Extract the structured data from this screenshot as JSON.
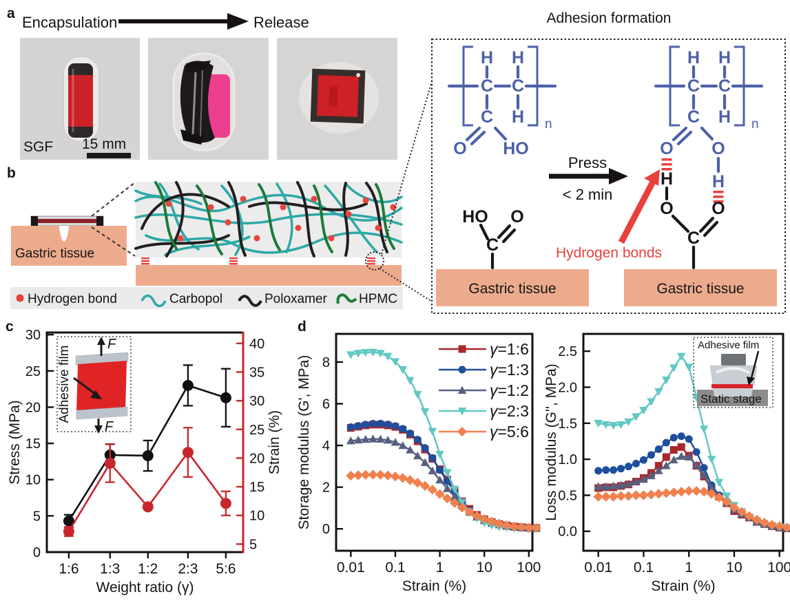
{
  "panel_a": {
    "label": "a",
    "encapsulation": "Encapsulation",
    "release": "Release",
    "sgf": "SGF",
    "scale_bar": "15 mm"
  },
  "adhesion": {
    "title": "Adhesion formation",
    "press": "Press",
    "time": "< 2 min",
    "hydrogen_bonds": "Hydrogen bonds",
    "gastric_tissue": "Gastric tissue",
    "atoms": {
      "h": "H",
      "c": "C",
      "o": "O",
      "ho": "HO",
      "n": "n"
    }
  },
  "panel_b": {
    "label": "b",
    "gastric_tissue": "Gastric tissue",
    "legend": {
      "hydrogen_bond": "Hydrogen bond",
      "carbopol": "Carbopol",
      "poloxamer": "Poloxamer",
      "hpmc": "HPMC"
    }
  },
  "panel_c": {
    "label": "c",
    "inset": {
      "film": "Adhesive film",
      "force": "F"
    }
  },
  "panel_d": {
    "label": "d",
    "inset": {
      "film": "Adhesive film",
      "stage": "Static stage"
    }
  },
  "colors": {
    "chem_blue": "#4d61a8",
    "hbond_red": "#e8413d",
    "tissue_salmon": "#edab8d",
    "carbopol_teal": "#2ca8a6",
    "poloxamer_black": "#221e1f",
    "hpmc_green": "#1b7b38",
    "series_1_6": "#a8282d",
    "series_1_3": "#1d4f9c",
    "series_1_2": "#566180",
    "series_2_3": "#62c8c3",
    "series_5_6": "#f0814f",
    "strain_axis_red": "#c8262c"
  },
  "chart_data": [
    {
      "id": "c",
      "type": "scatter",
      "categories": [
        "1:6",
        "1:3",
        "1:2",
        "2:3",
        "5:6"
      ],
      "cat_fractions": [
        0.112,
        0.322,
        0.515,
        0.719,
        0.912
      ],
      "xlabel": "Weight ratio (γ)",
      "left": {
        "label": "Stress (MPa)",
        "ticks": [
          0,
          5,
          10,
          15,
          20,
          25,
          30
        ],
        "range": [
          0,
          30.3
        ],
        "color": "#111111"
      },
      "right": {
        "label": "Strain (%)",
        "ticks": [
          5,
          10,
          15,
          20,
          25,
          30,
          35,
          40
        ],
        "range": [
          3.6,
          41.9
        ],
        "color": "#c8262c"
      },
      "series": [
        {
          "name": "Stress",
          "axis": "left",
          "color": "#111111",
          "marker": "circle",
          "values": [
            4.3,
            13.4,
            13.3,
            23.0,
            21.3
          ],
          "errors": [
            0.85,
            1.5,
            2.1,
            2.8,
            4.0
          ]
        },
        {
          "name": "Strain",
          "axis": "right",
          "color": "#c8262c",
          "marker": "circle",
          "values": [
            7.2,
            19.1,
            11.5,
            21.0,
            12.1
          ],
          "errors": [
            0.8,
            3.3,
            0.4,
            4.3,
            2.1
          ]
        }
      ]
    },
    {
      "id": "d1",
      "type": "line",
      "xscale": "log",
      "xlabel": "Strain (%)",
      "ylabel": "Storage modulus (G', MPa)",
      "xticks": [
        "0.01",
        "0.1",
        "1",
        "10",
        "100"
      ],
      "yticks": [
        "0",
        "2",
        "4",
        "6",
        "8"
      ],
      "xlog_range": [
        -2.33,
        2.08
      ],
      "yrange": [
        -1.05,
        9.35
      ],
      "legend": true,
      "x": [
        0.01,
        0.0147,
        0.0215,
        0.0316,
        0.0464,
        0.0681,
        0.1,
        0.147,
        0.215,
        0.316,
        0.464,
        0.681,
        1,
        1.47,
        2.15,
        3.16,
        4.64,
        6.81,
        10,
        14.7,
        21.5,
        31.6,
        46.4,
        68.1,
        100,
        147
      ],
      "series": [
        {
          "name": "γ=1:6",
          "color": "#a8282d",
          "marker": "square",
          "values": [
            4.84,
            4.9,
            4.96,
            5.0,
            5.0,
            4.96,
            4.89,
            4.75,
            4.52,
            4.2,
            3.8,
            3.36,
            2.86,
            2.36,
            1.88,
            1.32,
            0.96,
            0.67,
            0.46,
            0.33,
            0.23,
            0.16,
            0.11,
            0.08,
            0.05,
            0.04
          ]
        },
        {
          "name": "γ=1:3",
          "color": "#1d4f9c",
          "marker": "circle",
          "values": [
            4.88,
            4.94,
            5.0,
            5.04,
            5.05,
            5.01,
            4.93,
            4.8,
            4.58,
            4.28,
            3.88,
            3.4,
            2.82,
            2.28,
            1.76,
            1.22,
            0.88,
            0.61,
            0.41,
            0.28,
            0.19,
            0.13,
            0.08,
            0.05,
            0.03,
            0.02
          ]
        },
        {
          "name": "γ=1:2",
          "color": "#566180",
          "marker": "triangle-up",
          "values": [
            4.22,
            4.26,
            4.29,
            4.31,
            4.3,
            4.25,
            4.15,
            3.99,
            3.78,
            3.5,
            3.18,
            2.78,
            2.34,
            1.93,
            1.54,
            1.11,
            0.8,
            0.56,
            0.39,
            0.27,
            0.19,
            0.12,
            0.08,
            0.05,
            0.03,
            0.02
          ]
        },
        {
          "name": "γ=2:3",
          "color": "#62c8c3",
          "marker": "triangle-down",
          "values": [
            8.35,
            8.42,
            8.46,
            8.47,
            8.42,
            8.28,
            8.02,
            7.64,
            7.12,
            6.45,
            5.62,
            4.68,
            3.58,
            2.7,
            1.9,
            1.28,
            0.82,
            0.51,
            0.29,
            0.17,
            0.1,
            0.06,
            0.03,
            0.02,
            0.01,
            0.01
          ]
        },
        {
          "name": "γ=5:6",
          "color": "#f0814f",
          "marker": "diamond",
          "values": [
            2.55,
            2.57,
            2.59,
            2.6,
            2.59,
            2.56,
            2.51,
            2.44,
            2.34,
            2.21,
            2.06,
            1.88,
            1.67,
            1.46,
            1.24,
            1.02,
            0.81,
            0.62,
            0.47,
            0.35,
            0.25,
            0.17,
            0.11,
            0.08,
            0.05,
            0.04
          ]
        }
      ]
    },
    {
      "id": "d2",
      "type": "line",
      "xscale": "log",
      "xlabel": "Strain (%)",
      "ylabel": "Loss modulus (G'', MPa)",
      "xticks": [
        "0.01",
        "0.1",
        "1",
        "10",
        "100"
      ],
      "yticks": [
        "0.0",
        "0.5",
        "1.0",
        "1.5",
        "2.0",
        "2.5"
      ],
      "xlog_range": [
        -2.33,
        2.08
      ],
      "yrange": [
        -0.27,
        2.74
      ],
      "legend": false,
      "x": [
        0.01,
        0.0147,
        0.0215,
        0.0316,
        0.0464,
        0.0681,
        0.1,
        0.147,
        0.215,
        0.316,
        0.464,
        0.681,
        1,
        1.47,
        2.15,
        3.16,
        4.64,
        6.81,
        10,
        14.7,
        21.5,
        31.6,
        46.4,
        68.1,
        100,
        147
      ],
      "series": [
        {
          "name": "γ=1:6",
          "color": "#a8282d",
          "marker": "square",
          "values": [
            0.6,
            0.61,
            0.61,
            0.63,
            0.65,
            0.69,
            0.74,
            0.81,
            0.91,
            1.03,
            1.13,
            1.17,
            1.05,
            0.91,
            0.76,
            0.58,
            0.48,
            0.39,
            0.28,
            0.23,
            0.19,
            0.13,
            0.1,
            0.07,
            0.05,
            0.04
          ]
        },
        {
          "name": "γ=1:3",
          "color": "#1d4f9c",
          "marker": "circle",
          "values": [
            0.84,
            0.85,
            0.85,
            0.87,
            0.9,
            0.94,
            0.99,
            1.06,
            1.14,
            1.23,
            1.3,
            1.32,
            1.28,
            1.1,
            0.88,
            0.64,
            0.5,
            0.41,
            0.31,
            0.25,
            0.2,
            0.14,
            0.1,
            0.07,
            0.05,
            0.04
          ]
        },
        {
          "name": "γ=1:2",
          "color": "#566180",
          "marker": "triangle-up",
          "values": [
            0.62,
            0.62,
            0.63,
            0.64,
            0.66,
            0.69,
            0.72,
            0.77,
            0.84,
            0.91,
            0.99,
            1.04,
            1.03,
            0.92,
            0.78,
            0.6,
            0.49,
            0.4,
            0.3,
            0.24,
            0.19,
            0.13,
            0.1,
            0.07,
            0.05,
            0.04
          ]
        },
        {
          "name": "γ=2:3",
          "color": "#62c8c3",
          "marker": "triangle-down",
          "values": [
            1.5,
            1.48,
            1.47,
            1.48,
            1.52,
            1.59,
            1.68,
            1.8,
            1.94,
            2.1,
            2.27,
            2.43,
            2.28,
            1.86,
            1.42,
            1.0,
            0.68,
            0.49,
            0.36,
            0.27,
            0.2,
            0.15,
            0.11,
            0.08,
            0.06,
            0.05
          ]
        },
        {
          "name": "γ=5:6",
          "color": "#f0814f",
          "marker": "diamond",
          "values": [
            0.48,
            0.48,
            0.48,
            0.49,
            0.49,
            0.5,
            0.5,
            0.51,
            0.52,
            0.53,
            0.54,
            0.55,
            0.56,
            0.56,
            0.55,
            0.52,
            0.47,
            0.41,
            0.33,
            0.27,
            0.21,
            0.16,
            0.12,
            0.09,
            0.07,
            0.05
          ]
        }
      ]
    }
  ]
}
